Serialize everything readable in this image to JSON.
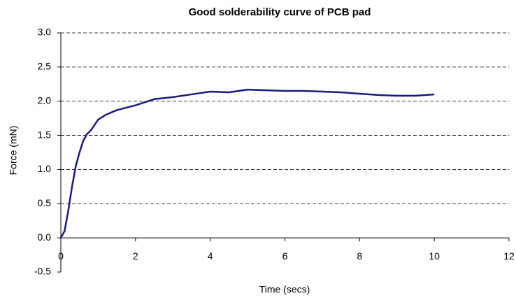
{
  "chart_data": {
    "type": "line",
    "title": "Good solderability curve of PCB pad",
    "xlabel": "Time (secs)",
    "ylabel": "Force (mN)",
    "x": [
      0,
      0.1,
      0.2,
      0.3,
      0.4,
      0.5,
      0.6,
      0.7,
      0.8,
      0.9,
      1.0,
      1.2,
      1.5,
      2,
      2.5,
      3,
      3.5,
      4,
      4.5,
      5,
      5.5,
      6,
      6.5,
      7,
      7.5,
      8,
      8.5,
      9,
      9.5,
      10
    ],
    "values": [
      0,
      0.1,
      0.4,
      0.75,
      1.05,
      1.25,
      1.42,
      1.52,
      1.57,
      1.65,
      1.73,
      1.8,
      1.87,
      1.94,
      2.03,
      2.06,
      2.1,
      2.14,
      2.13,
      2.17,
      2.16,
      2.15,
      2.15,
      2.14,
      2.13,
      2.11,
      2.09,
      2.08,
      2.08,
      2.1
    ],
    "color": "#1a1a80",
    "xlim": [
      0,
      12
    ],
    "xticks": [
      0,
      2,
      4,
      6,
      8,
      10,
      12
    ],
    "ylim": [
      -0.5,
      3
    ],
    "yticks": [
      {
        "value": -0.5,
        "label": "-0.5"
      },
      {
        "value": 0,
        "label": "0.0"
      },
      {
        "value": 0.5,
        "label": "0.5"
      },
      {
        "value": 1,
        "label": "1.0"
      },
      {
        "value": 1.5,
        "label": "1.5"
      },
      {
        "value": 2,
        "label": "2.0"
      },
      {
        "value": 2.5,
        "label": "2.5"
      },
      {
        "value": 3,
        "label": "3.0"
      }
    ],
    "grid": true
  }
}
